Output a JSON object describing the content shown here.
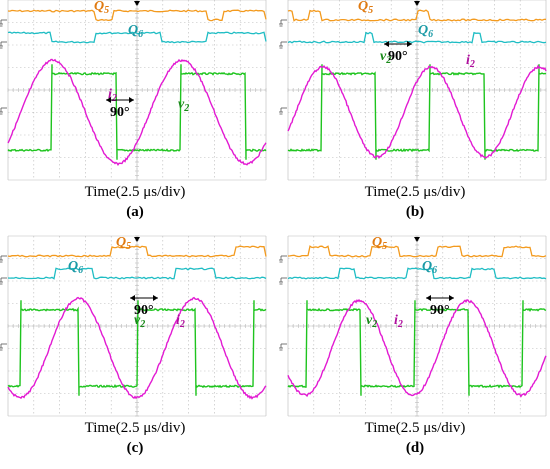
{
  "x_axis_label": "Time(2.5 μs/div)",
  "colors": {
    "Q5": "#f39a1e",
    "Q6": "#1fbdc4",
    "v2": "#1ec41e",
    "i2": "#e21ad2",
    "grid": "#b9b9b9",
    "text_Q5": "#e07a10",
    "text_Q6": "#1a9aa6",
    "text_v2": "#1a8a1a",
    "text_i2": "#b0109e"
  },
  "chart_data": [
    {
      "type": "line",
      "panel": "(a)",
      "xlabel": "Time(2.5 μs/div)",
      "x_divisions": 10,
      "y_divisions": 8,
      "series": [
        {
          "name": "Q5",
          "kind": "gate",
          "high_intervals_div": [
            [
              0.0,
              3.4
            ],
            [
              4.1,
              7.7
            ],
            [
              8.3,
              10.0
            ]
          ]
        },
        {
          "name": "Q6",
          "kind": "gate",
          "high_intervals_div": [
            [
              0.0,
              1.7
            ],
            [
              3.4,
              5.9
            ],
            [
              7.7,
              10.0
            ]
          ]
        },
        {
          "name": "v2",
          "kind": "square",
          "period_div": 5.0,
          "phase_div": 1.7,
          "amplitude_div": 1.7
        },
        {
          "name": "i2",
          "kind": "sine",
          "period_div": 5.0,
          "phase_div": 0.5,
          "amplitude_div": 2.3
        }
      ],
      "annotation": "90°"
    },
    {
      "type": "line",
      "panel": "(b)",
      "xlabel": "Time(2.5 μs/div)",
      "x_divisions": 10,
      "y_divisions": 8,
      "series": [
        {
          "name": "Q5",
          "kind": "gate",
          "high_intervals_div": [
            [
              0.0,
              0.2
            ],
            [
              0.8,
              1.3
            ],
            [
              5.0,
              5.5
            ]
          ]
        },
        {
          "name": "Q6",
          "kind": "gate",
          "high_intervals_div": [
            [
              3.0,
              3.3
            ],
            [
              7.2,
              7.5
            ]
          ]
        },
        {
          "name": "v2",
          "kind": "square",
          "period_div": 4.2,
          "phase_div": 1.3,
          "amplitude_div": 1.7
        },
        {
          "name": "i2",
          "kind": "sine",
          "period_div": 4.2,
          "phase_div": 0.3,
          "amplitude_div": 2.0
        }
      ],
      "annotation": "90°"
    },
    {
      "type": "line",
      "panel": "(c)",
      "xlabel": "Time(2.5 μs/div)",
      "x_divisions": 10,
      "y_divisions": 8,
      "series": [
        {
          "name": "Q5",
          "kind": "gate",
          "high_intervals_div": [
            [
              4.0,
              5.4
            ],
            [
              8.8,
              10.0
            ]
          ]
        },
        {
          "name": "Q6",
          "kind": "gate",
          "high_intervals_div": [
            [
              1.8,
              3.3
            ],
            [
              6.5,
              8.0
            ]
          ]
        },
        {
          "name": "v2",
          "kind": "square",
          "period_div": 4.5,
          "phase_div": 0.5,
          "amplitude_div": 1.7
        },
        {
          "name": "i2",
          "kind": "sine",
          "period_div": 4.5,
          "phase_div": 1.6,
          "amplitude_div": 2.2
        }
      ],
      "annotation": "90°"
    },
    {
      "type": "line",
      "panel": "(d)",
      "xlabel": "Time(2.5 μs/div)",
      "x_divisions": 10,
      "y_divisions": 8,
      "series": [
        {
          "name": "Q5",
          "kind": "gate",
          "high_intervals_div": [
            [
              0.8,
              1.6
            ],
            [
              3.2,
              4.3
            ],
            [
              5.8,
              6.7
            ],
            [
              8.3,
              9.4
            ]
          ]
        },
        {
          "name": "Q6",
          "kind": "gate",
          "high_intervals_div": [
            [
              2.0,
              2.6
            ],
            [
              4.6,
              5.6
            ],
            [
              7.1,
              8.0
            ]
          ]
        },
        {
          "name": "v2",
          "kind": "square",
          "period_div": 4.2,
          "phase_div": 0.7,
          "amplitude_div": 1.7
        },
        {
          "name": "i2",
          "kind": "sine",
          "period_div": 4.2,
          "phase_div": 1.7,
          "amplitude_div": 2.1
        }
      ],
      "annotation": "90°"
    }
  ]
}
